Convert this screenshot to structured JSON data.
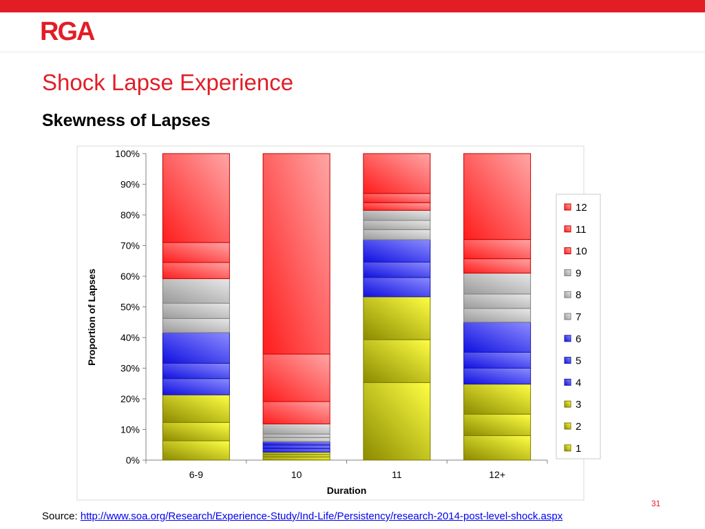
{
  "header": {
    "logo_text": "RGA",
    "title": "Shock Lapse Experience",
    "subtitle": "Skewness of Lapses",
    "page_number": "31"
  },
  "footer": {
    "source_label": "Source: ",
    "source_link": "http://www.soa.org/Research/Experience-Study/Ind-Life/Persistency/research-2014-post-level-shock.aspx"
  },
  "colors": {
    "brand_red": "#e21d26",
    "yellow_series": "#d4d400",
    "blue_series": "#3b3bf5",
    "gray_series": "#bcbcbc",
    "red_series": "#ff4a4a"
  },
  "chart_data": {
    "type": "bar",
    "stacked": true,
    "percent": true,
    "title": "",
    "xlabel": "Duration",
    "ylabel": "Proportion of Lapses",
    "ylim": [
      0,
      100
    ],
    "yticks": [
      "0%",
      "10%",
      "20%",
      "30%",
      "40%",
      "50%",
      "60%",
      "70%",
      "80%",
      "90%",
      "100%"
    ],
    "categories": [
      "6-9",
      "10",
      "11",
      "12+"
    ],
    "legend_position": "right",
    "grid": false,
    "series": [
      {
        "name": "1",
        "group": "yellow",
        "values": [
          6.3,
          1.0,
          25.3,
          8.0
        ]
      },
      {
        "name": "2",
        "group": "yellow",
        "values": [
          6.0,
          0.8,
          14.0,
          7.0
        ]
      },
      {
        "name": "3",
        "group": "yellow",
        "values": [
          9.0,
          0.8,
          14.0,
          9.8
        ]
      },
      {
        "name": "4",
        "group": "blue",
        "values": [
          5.3,
          1.1,
          6.3,
          5.2
        ]
      },
      {
        "name": "5",
        "group": "blue",
        "values": [
          5.0,
          1.2,
          5.0,
          5.2
        ]
      },
      {
        "name": "6",
        "group": "blue",
        "values": [
          10.0,
          1.1,
          7.3,
          9.8
        ]
      },
      {
        "name": "7",
        "group": "gray",
        "values": [
          4.6,
          1.3,
          3.3,
          4.5
        ]
      },
      {
        "name": "8",
        "group": "gray",
        "values": [
          5.0,
          1.2,
          3.0,
          4.7
        ]
      },
      {
        "name": "9",
        "group": "gray",
        "values": [
          8.0,
          3.3,
          3.3,
          6.8
        ]
      },
      {
        "name": "10",
        "group": "red",
        "values": [
          5.3,
          7.3,
          2.5,
          4.7
        ]
      },
      {
        "name": "11",
        "group": "red",
        "values": [
          6.5,
          15.5,
          3.0,
          6.3
        ]
      },
      {
        "name": "12",
        "group": "red",
        "values": [
          29.0,
          65.4,
          13.0,
          28.0
        ]
      }
    ]
  }
}
